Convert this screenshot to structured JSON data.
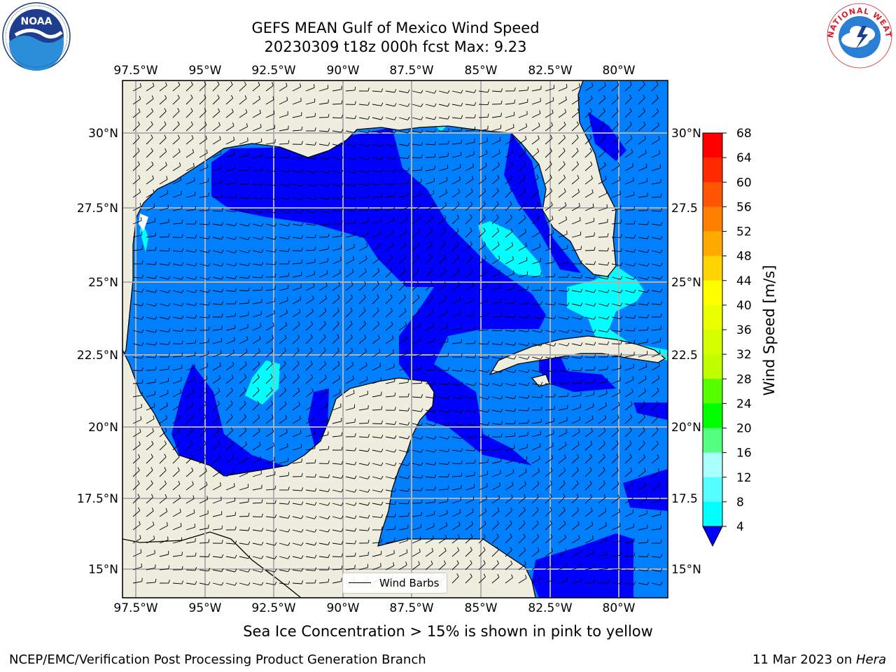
{
  "title": {
    "line1": "GEFS MEAN Gulf of Mexico Wind Speed",
    "line2": "20230309 t18z 000h fcst   Max: 9.23"
  },
  "map": {
    "lon_ticks": [
      "97.5°W",
      "95°W",
      "92.5°W",
      "90°W",
      "87.5°W",
      "85°W",
      "82.5°W",
      "80°W"
    ],
    "lat_ticks_left": [
      "30°N",
      "27.5°N",
      "25°N",
      "22.5°N",
      "20°N",
      "17.5°N",
      "15°N"
    ],
    "lat_ticks_right": [
      "30°N",
      "27.5",
      "25°N",
      "22.5",
      "20°N",
      "17.5",
      "15°N"
    ],
    "extent": {
      "lon_min": -98.0,
      "lon_max": -78.2,
      "lat_min": 14.0,
      "lat_max": 31.8
    },
    "land_color": "#efeddd",
    "wind_colors": {
      "4-8": "#0080ff",
      "below-4": "#0000ff",
      "8-12": "#00ffff"
    },
    "legend_label": "Wind Barbs"
  },
  "colorbar": {
    "label": "Wind Speed [m/s]",
    "ticks": [
      "68",
      "64",
      "60",
      "56",
      "52",
      "48",
      "44",
      "40",
      "36",
      "32",
      "28",
      "24",
      "20",
      "16",
      "12",
      "8",
      "4"
    ],
    "colors": [
      "#ff0000",
      "#ff2a00",
      "#ff5500",
      "#ff8000",
      "#ffaa00",
      "#ffd400",
      "#ffff00",
      "#eaff00",
      "#d5ff00",
      "#c0ff00",
      "#55ff00",
      "#00ff00",
      "#55ff80",
      "#aaffff",
      "#55ffff",
      "#00ffff",
      "#0080ff"
    ],
    "extend_color": "#0000ff"
  },
  "caption": "Sea Ice Concentration > 15% is shown in pink to yellow",
  "footer": {
    "left": "NCEP/EMC/Verification Post Processing Product Generation Branch",
    "date": "11 Mar 2023 on ",
    "host": "Hera"
  },
  "logos": {
    "noaa_text": "NOAA",
    "nws_ring_text": "NATIONAL WEATHER SERVICE"
  }
}
